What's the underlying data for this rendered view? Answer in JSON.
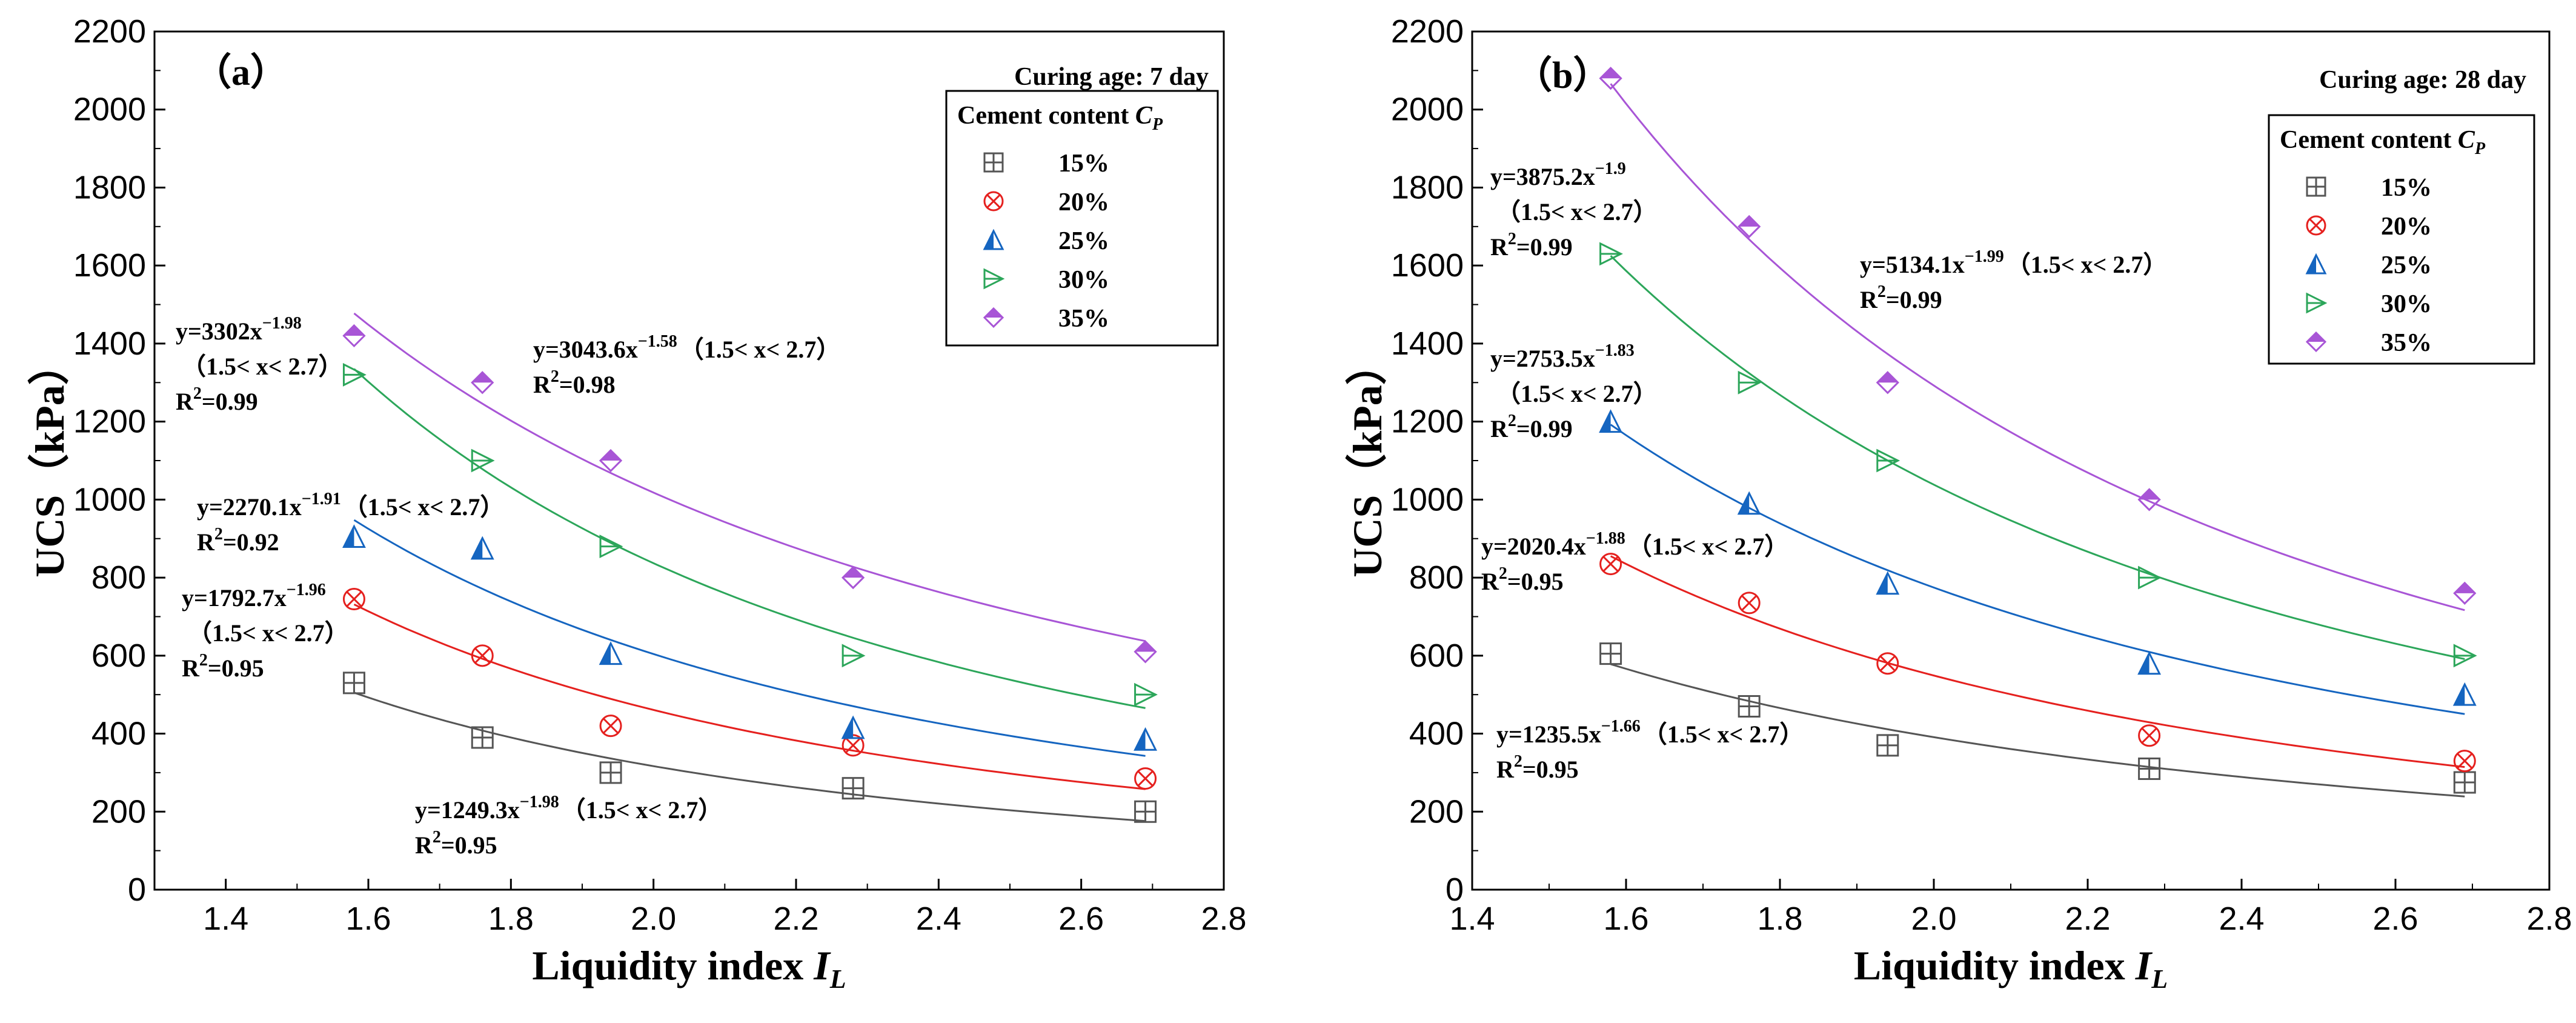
{
  "chart_data": [
    {
      "type": "scatter",
      "panel_label": "（a）",
      "corner_note": "Curing age: 7 day",
      "xlabel": "Liquidity index ",
      "xlabel_sym": "I",
      "xlabel_sub": "L",
      "ylabel": "UCS（kPa）",
      "xlim": [
        1.3,
        2.8
      ],
      "ylim": [
        0,
        2200
      ],
      "xticks": [
        "1.4",
        "1.6",
        "1.8",
        "2.0",
        "2.2",
        "2.4",
        "2.6",
        "2.8"
      ],
      "yticks": [
        "0",
        "200",
        "400",
        "600",
        "800",
        "1000",
        "1200",
        "1400",
        "1600",
        "1800",
        "2000",
        "2200"
      ],
      "legend_title": "Cement content ",
      "legend_title_sym": "C",
      "legend_title_sub": "P",
      "x": [
        1.58,
        1.76,
        1.94,
        2.28,
        2.69
      ],
      "series": [
        {
          "name": "15%",
          "marker": "square-plus",
          "color": "#555555",
          "values": [
            530,
            390,
            300,
            260,
            200
          ],
          "fit": {
            "a": 1249.3,
            "b": -1.98,
            "color": "#555555"
          },
          "eq": {
            "line1": "y=1249.3x",
            "exp": "−1.98",
            "line1_tail": "（1.5< x< 2.7）",
            "line2": "",
            "r2": "=0.95"
          }
        },
        {
          "name": "20%",
          "marker": "circle-x",
          "color": "#e5201e",
          "values": [
            745,
            600,
            420,
            370,
            285
          ],
          "fit": {
            "a": 1792.7,
            "b": -1.96,
            "color": "#e5201e"
          },
          "eq": {
            "line1": "y=1792.7x",
            "exp": "−1.96",
            "line1_tail": "",
            "line2": "（1.5< x< 2.7）",
            "r2": "=0.95"
          }
        },
        {
          "name": "25%",
          "marker": "tri-half",
          "color": "#1565c0",
          "values": [
            905,
            875,
            605,
            415,
            385
          ],
          "fit": {
            "a": 2270.1,
            "b": -1.91,
            "color": "#1565c0"
          },
          "eq": {
            "line1": "y=2270.1x",
            "exp": "−1.91",
            "line1_tail": "（1.5< x< 2.7）",
            "line2": "",
            "r2": "=0.92"
          }
        },
        {
          "name": "30%",
          "marker": "tri-right",
          "color": "#2ca65a",
          "values": [
            1320,
            1100,
            880,
            600,
            500
          ],
          "fit": {
            "a": 3302,
            "b": -1.98,
            "color": "#2ca65a"
          },
          "eq": {
            "line1": "y=3302x",
            "exp": "−1.98",
            "line1_tail": "",
            "line2": "（1.5< x< 2.7）",
            "r2": "=0.99"
          }
        },
        {
          "name": "35%",
          "marker": "diamond-half",
          "color": "#a855d6",
          "values": [
            1420,
            1300,
            1100,
            800,
            610
          ],
          "fit": {
            "a": 3043.6,
            "b": -1.58,
            "color": "#a855d6"
          },
          "eq": {
            "line1": "y=3043.6x",
            "exp": "−1.58",
            "line1_tail": "（1.5< x< 2.7）",
            "line2": "",
            "r2": "=0.98"
          }
        }
      ]
    },
    {
      "type": "scatter",
      "panel_label": "（b）",
      "corner_note": "Curing age: 28 day",
      "xlabel": "Liquidity index ",
      "xlabel_sym": "I",
      "xlabel_sub": "L",
      "ylabel": "UCS（kPa）",
      "xlim": [
        1.4,
        2.8
      ],
      "ylim": [
        0,
        2200
      ],
      "xticks": [
        "1.4",
        "1.6",
        "1.8",
        "2.0",
        "2.2",
        "2.4",
        "2.6",
        "2.8"
      ],
      "yticks": [
        "0",
        "200",
        "400",
        "600",
        "800",
        "1000",
        "1200",
        "1400",
        "1600",
        "1800",
        "2000",
        "2200"
      ],
      "legend_title": "Cement content ",
      "legend_title_sym": "C",
      "legend_title_sub": "P",
      "x": [
        1.58,
        1.76,
        1.94,
        2.28,
        2.69
      ],
      "series": [
        {
          "name": "15%",
          "marker": "square-plus",
          "color": "#555555",
          "values": [
            605,
            470,
            370,
            310,
            275
          ],
          "fit": {
            "a": 1235.5,
            "b": -1.66,
            "color": "#555555"
          },
          "eq": {
            "line1": "y=1235.5x",
            "exp": "−1.66",
            "line1_tail": "（1.5< x< 2.7）",
            "line2": "",
            "r2": "=0.95"
          }
        },
        {
          "name": "20%",
          "marker": "circle-x",
          "color": "#e5201e",
          "values": [
            835,
            735,
            580,
            395,
            330
          ],
          "fit": {
            "a": 2020.4,
            "b": -1.88,
            "color": "#e5201e"
          },
          "eq": {
            "line1": "y=2020.4x",
            "exp": "−1.88",
            "line1_tail": "（1.5< x< 2.7）",
            "line2": "",
            "r2": "=0.95"
          }
        },
        {
          "name": "25%",
          "marker": "tri-half",
          "color": "#1565c0",
          "values": [
            1200,
            990,
            785,
            580,
            500
          ],
          "fit": {
            "a": 2753.5,
            "b": -1.83,
            "color": "#1565c0"
          },
          "eq": {
            "line1": "y=2753.5x",
            "exp": "−1.83",
            "line1_tail": "",
            "line2": "（1.5< x< 2.7）",
            "r2": "=0.99"
          }
        },
        {
          "name": "30%",
          "marker": "tri-right",
          "color": "#2ca65a",
          "values": [
            1630,
            1300,
            1100,
            800,
            600
          ],
          "fit": {
            "a": 3875.2,
            "b": -1.9,
            "color": "#2ca65a"
          },
          "eq": {
            "line1": "y=3875.2x",
            "exp": "−1.9",
            "line1_tail": "",
            "line2": "（1.5< x< 2.7）",
            "r2": "=0.99"
          }
        },
        {
          "name": "35%",
          "marker": "diamond-half",
          "color": "#a855d6",
          "values": [
            2080,
            1700,
            1300,
            1000,
            760
          ],
          "fit": {
            "a": 5134.1,
            "b": -1.99,
            "color": "#a855d6"
          },
          "eq": {
            "line1": "y=5134.1x",
            "exp": "−1.99",
            "line1_tail": "（1.5< x< 2.7）",
            "line2": "",
            "r2": "=0.99"
          }
        }
      ]
    }
  ]
}
